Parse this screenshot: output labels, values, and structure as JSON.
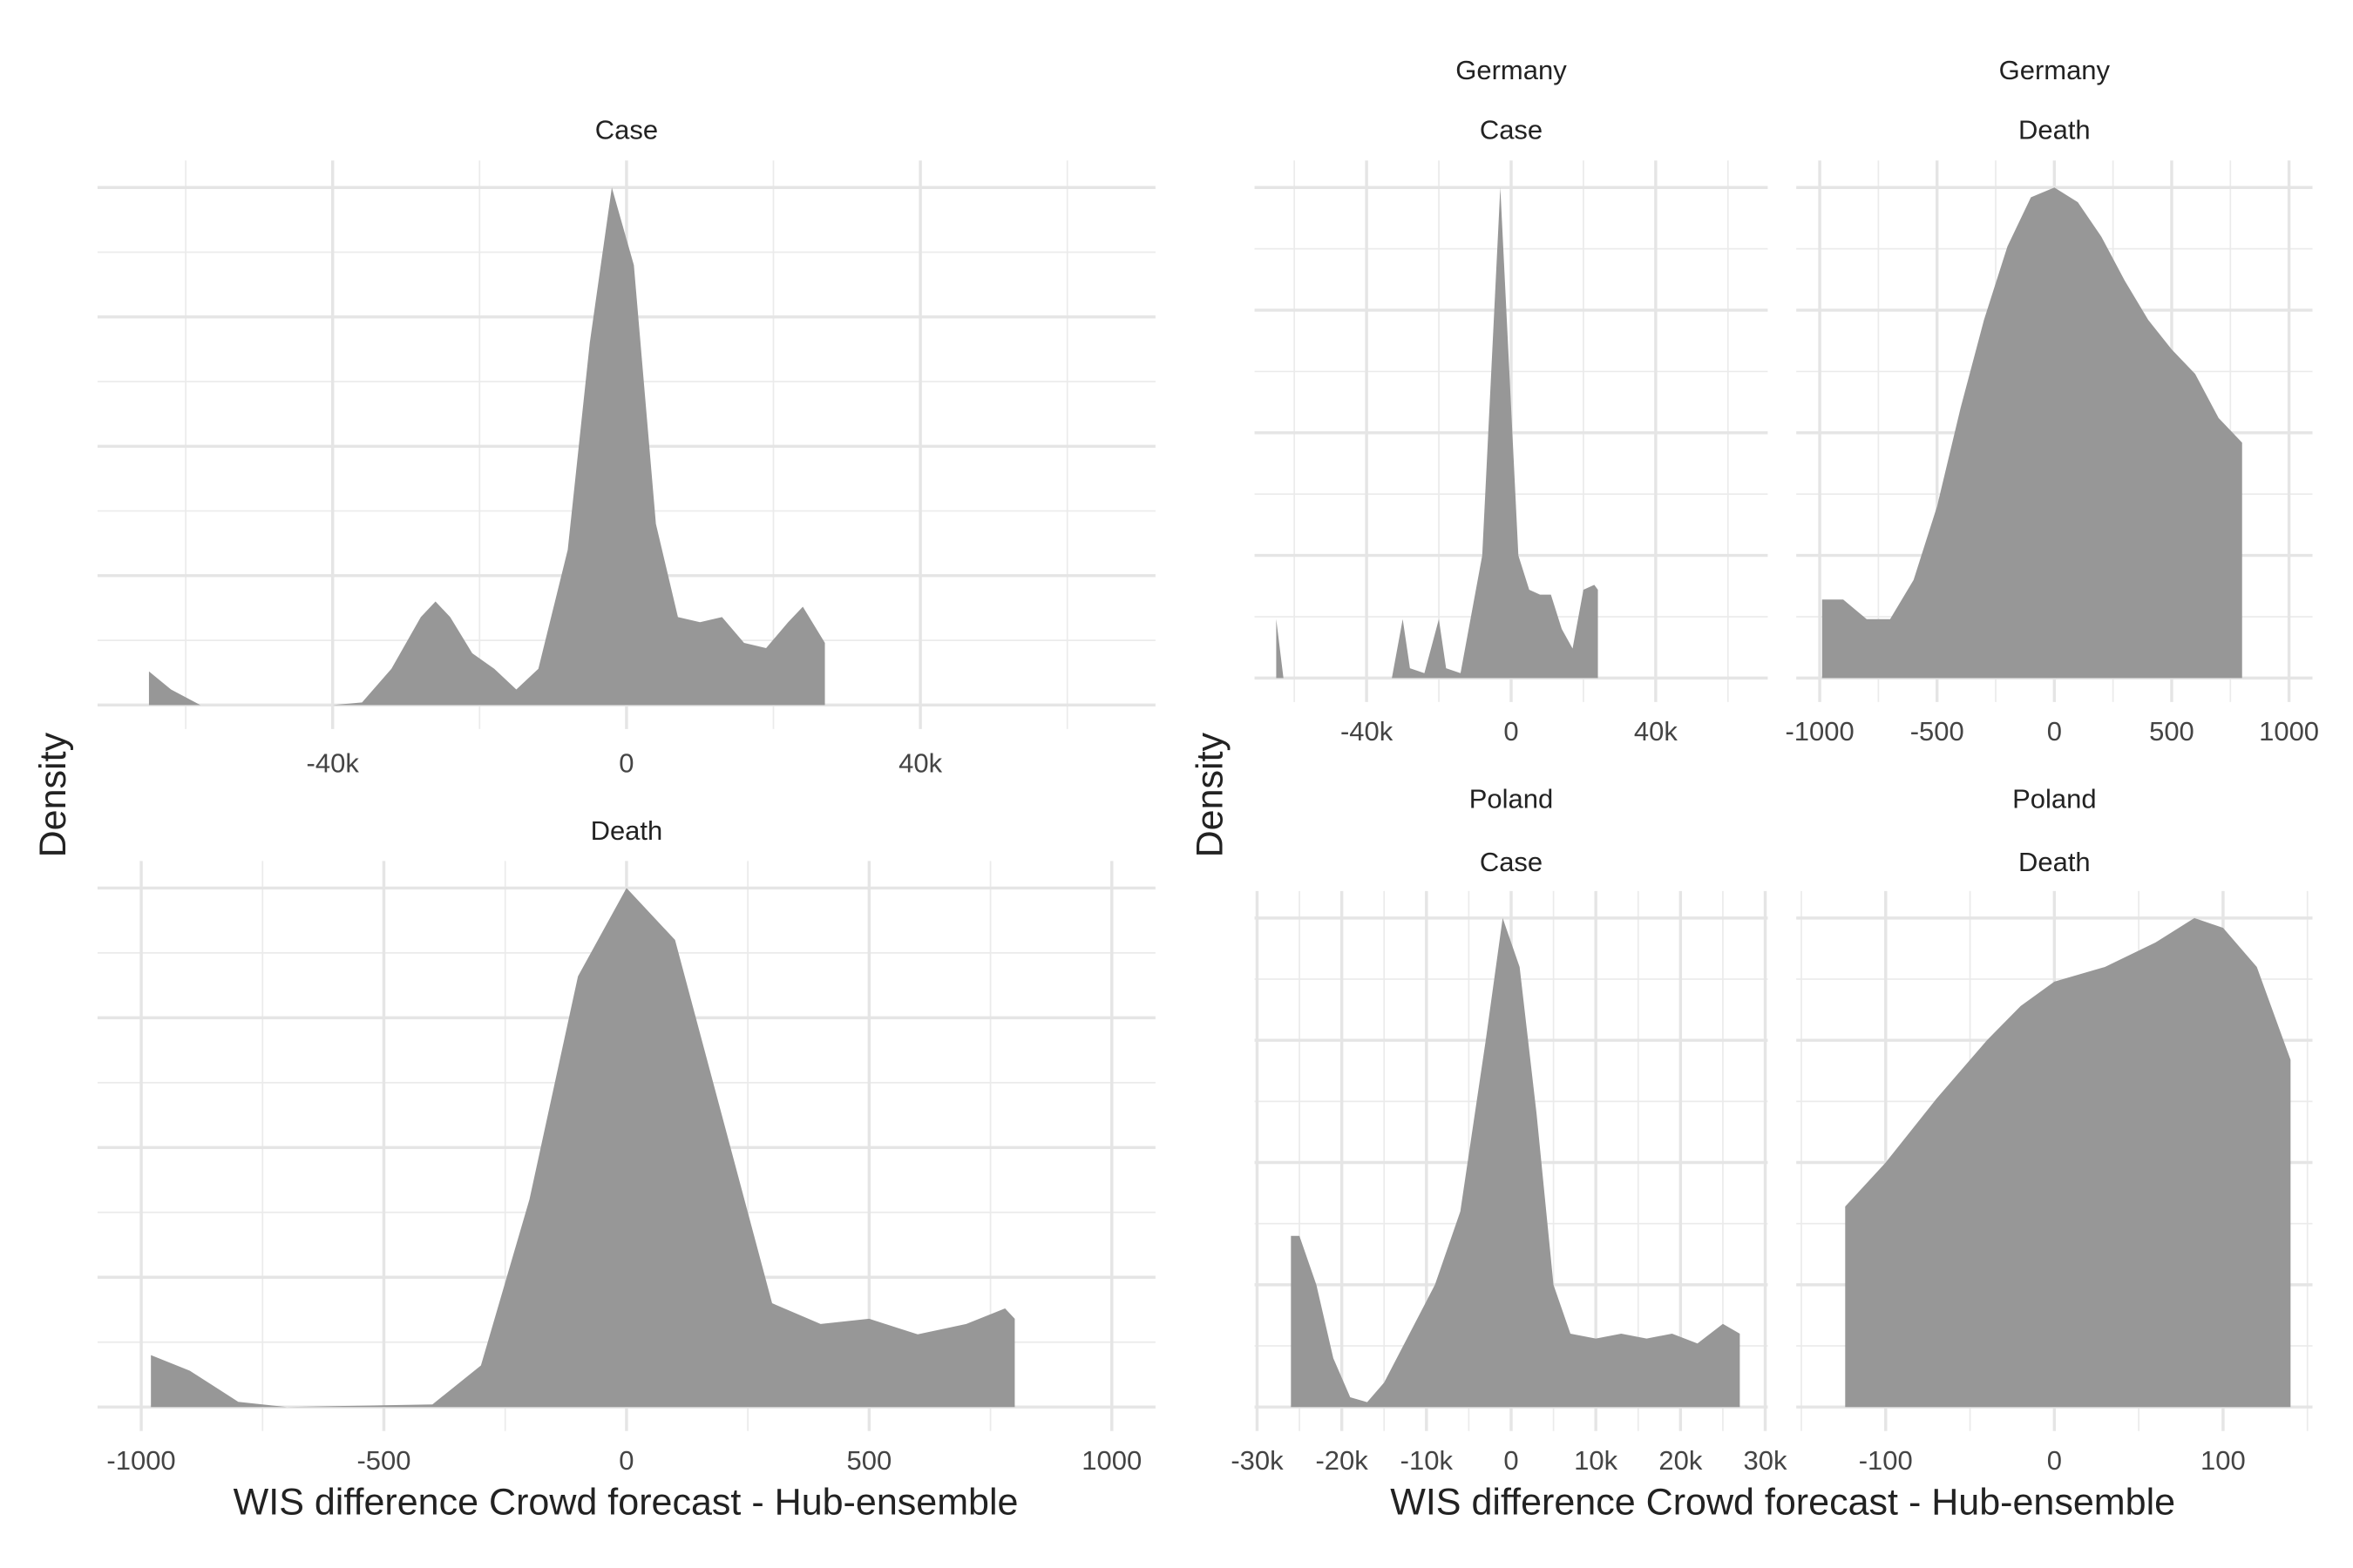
{
  "chart_data": [
    {
      "type": "area",
      "strips": [
        "Case"
      ],
      "ylabel": "Density",
      "x": [
        -65000,
        -62000,
        -58000,
        -40000,
        -36000,
        -32000,
        -28000,
        -26000,
        -24000,
        -21000,
        -18000,
        -15000,
        -12000,
        -8000,
        -5000,
        -2000,
        1000,
        4000,
        7000,
        10000,
        13000,
        16000,
        19000,
        22000,
        24000,
        27000
      ],
      "values": [
        0.065,
        0.03,
        0,
        0,
        0.005,
        0.07,
        0.17,
        0.2,
        0.17,
        0.1,
        0.07,
        0.03,
        0.07,
        0.3,
        0.7,
        1.0,
        0.85,
        0.35,
        0.17,
        0.16,
        0.17,
        0.12,
        0.11,
        0.16,
        0.19,
        0.12
      ],
      "color": "#979797",
      "xlim": [
        -72000,
        72000
      ],
      "xticks": [
        {
          "value": -40000,
          "label": "-40k"
        },
        0,
        {
          "value": 40000,
          "label": "40k"
        }
      ],
      "ylim": [
        0,
        1
      ],
      "yticks": [
        0,
        0.25,
        0.5,
        0.75,
        1
      ],
      "grid": true
    },
    {
      "type": "area",
      "strips": [
        "Death"
      ],
      "xlabel": "WIS difference Crowd forecast - Hub-ensemble",
      "x": [
        -980,
        -900,
        -800,
        -700,
        -400,
        -300,
        -200,
        -100,
        0,
        100,
        200,
        300,
        400,
        500,
        600,
        700,
        780,
        800
      ],
      "values": [
        0.1,
        0.07,
        0.01,
        0,
        0.005,
        0.08,
        0.4,
        0.83,
        1.0,
        0.9,
        0.55,
        0.2,
        0.16,
        0.17,
        0.14,
        0.16,
        0.19,
        0.17
      ],
      "color": "#979797",
      "xlim": [
        -1090,
        1090
      ],
      "xticks": [
        -1000,
        -500,
        0,
        500,
        1000
      ],
      "ylim": [
        0,
        1
      ],
      "yticks": [
        0,
        0.25,
        0.5,
        0.75,
        1
      ],
      "grid": true
    },
    {
      "type": "area",
      "strips": [
        "Germany",
        "Case"
      ],
      "ylabel": "Density",
      "x": [
        -65000,
        -63000,
        -33000,
        -30000,
        -28000,
        -24000,
        -20000,
        -18000,
        -14000,
        -8000,
        -4000,
        -3000,
        -1000,
        2000,
        5000,
        8000,
        11000,
        14000,
        17000,
        20000,
        23000,
        24000
      ],
      "values": [
        0.12,
        0,
        0,
        0.12,
        0.02,
        0.01,
        0.12,
        0.02,
        0.01,
        0.25,
        0.85,
        1.0,
        0.7,
        0.25,
        0.18,
        0.17,
        0.17,
        0.1,
        0.06,
        0.18,
        0.19,
        0.18
      ],
      "color": "#979797",
      "xlim": [
        -71000,
        71000
      ],
      "xticks": [
        {
          "value": -40000,
          "label": "-40k"
        },
        0,
        {
          "value": 40000,
          "label": "40k"
        }
      ],
      "ylim": [
        0,
        1
      ],
      "yticks": [
        0,
        0.25,
        0.5,
        0.75,
        1
      ],
      "grid": true
    },
    {
      "type": "area",
      "strips": [
        "Germany",
        "Death"
      ],
      "x": [
        -990,
        -900,
        -800,
        -700,
        -600,
        -500,
        -400,
        -300,
        -200,
        -100,
        0,
        100,
        200,
        300,
        400,
        500,
        600,
        700,
        800
      ],
      "values": [
        0.16,
        0.16,
        0.12,
        0.12,
        0.2,
        0.35,
        0.55,
        0.73,
        0.88,
        0.98,
        1.0,
        0.97,
        0.9,
        0.81,
        0.73,
        0.67,
        0.62,
        0.53,
        0.48
      ],
      "color": "#979797",
      "xlim": [
        -1100,
        1100
      ],
      "xticks": [
        -1000,
        -500,
        0,
        500,
        1000
      ],
      "ylim": [
        0,
        1
      ],
      "yticks": [
        0,
        0.25,
        0.5,
        0.75,
        1
      ],
      "grid": true
    },
    {
      "type": "area",
      "strips": [
        "Poland",
        "Case"
      ],
      "xlabel": "WIS difference Crowd forecast - Hub-ensemble",
      "x": [
        -26000,
        -25000,
        -23000,
        -21000,
        -19000,
        -17000,
        -15000,
        -12000,
        -9000,
        -6000,
        -3000,
        -1000,
        1000,
        3000,
        5000,
        7000,
        10000,
        13000,
        16000,
        19000,
        22000,
        25000,
        27000
      ],
      "values": [
        0.35,
        0.35,
        0.25,
        0.1,
        0.02,
        0.01,
        0.05,
        0.15,
        0.25,
        0.4,
        0.75,
        1.0,
        0.9,
        0.6,
        0.25,
        0.15,
        0.14,
        0.15,
        0.14,
        0.15,
        0.13,
        0.17,
        0.15
      ],
      "color": "#979797",
      "xlim": [
        -30300,
        30300
      ],
      "xticks": [
        {
          "value": -30000,
          "label": "-30k"
        },
        {
          "value": -20000,
          "label": "-20k"
        },
        {
          "value": -10000,
          "label": "-10k"
        },
        0,
        {
          "value": 10000,
          "label": "10k"
        },
        {
          "value": 20000,
          "label": "20k"
        },
        {
          "value": 30000,
          "label": "30k"
        }
      ],
      "ylim": [
        0,
        1
      ],
      "yticks": [
        0,
        0.25,
        0.5,
        0.75,
        1
      ],
      "grid": true
    },
    {
      "type": "area",
      "strips": [
        "Poland",
        "Death"
      ],
      "x": [
        -124,
        -100,
        -70,
        -40,
        -20,
        0,
        30,
        60,
        83,
        100,
        120,
        140
      ],
      "values": [
        0.41,
        0.5,
        0.63,
        0.75,
        0.82,
        0.87,
        0.9,
        0.95,
        1.0,
        0.98,
        0.9,
        0.71
      ],
      "color": "#979797",
      "xlim": [
        -153,
        153
      ],
      "xticks": [
        -100,
        0,
        100
      ],
      "ylim": [
        0,
        1
      ],
      "yticks": [
        0,
        0.25,
        0.5,
        0.75,
        1
      ],
      "grid": true
    }
  ]
}
